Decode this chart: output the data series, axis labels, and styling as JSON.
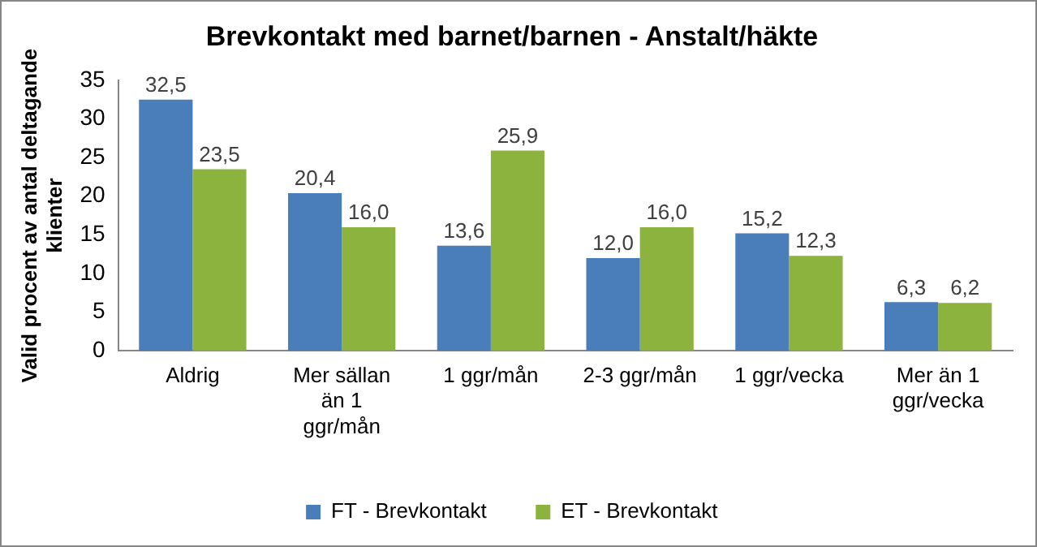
{
  "chart_data": {
    "type": "bar",
    "title": "Brevkontakt med barnet/barnen - Anstalt/häkte",
    "ylabel": "Valid procent av antal deltagande klienter",
    "categories": [
      "Aldrig",
      "Mer sällan än 1 ggr/mån",
      "1 ggr/mån",
      "2-3 ggr/mån",
      "1 ggr/vecka",
      "Mer än 1 ggr/vecka"
    ],
    "series": [
      {
        "name": "FT - Brevkontakt",
        "color": "#4a7ebb",
        "values": [
          32.5,
          20.4,
          13.6,
          12.0,
          15.2,
          6.3
        ],
        "value_labels": [
          "32,5",
          "20,4",
          "13,6",
          "12,0",
          "15,2",
          "6,3"
        ]
      },
      {
        "name": "ET - Brevkontakt",
        "color": "#8db33f",
        "values": [
          23.5,
          16.0,
          25.9,
          16.0,
          12.3,
          6.2
        ],
        "value_labels": [
          "23,5",
          "16,0",
          "25,9",
          "16,0",
          "12,3",
          "6,2"
        ]
      }
    ],
    "ylim": [
      0,
      35
    ],
    "yticks": [
      0,
      5,
      10,
      15,
      20,
      25,
      30,
      35
    ],
    "grid": false,
    "legend": "bottom"
  }
}
